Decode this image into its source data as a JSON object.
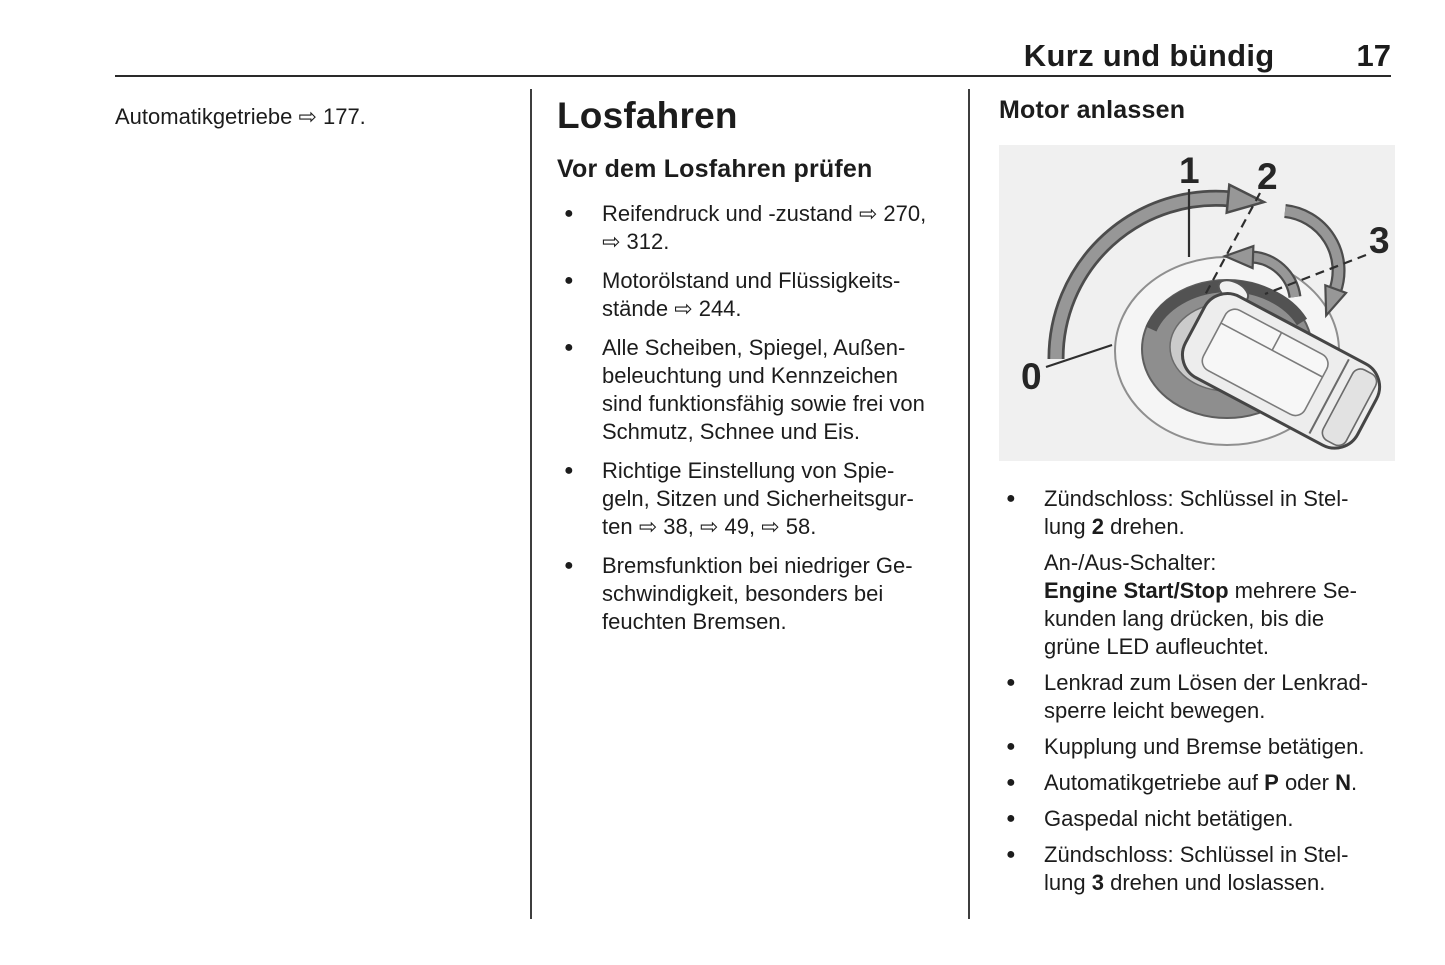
{
  "header": {
    "title": "Kurz und bündig",
    "page_number": "17"
  },
  "list_style": {
    "bullet_char": "●"
  },
  "left_column": {
    "cross_reference": "Automatikgetriebe ⇨ 177."
  },
  "middle_column": {
    "heading": "Losfahren",
    "subheading": "Vor dem Losfahren prüfen",
    "bullets": [
      "Reifendruck und -zustand ⇨ 270,\n⇨ 312.",
      "Motorölstand und Flüssigkeits-\nstände ⇨ 244.",
      "Alle Scheiben, Spiegel, Außen-\nbeleuchtung und Kennzeichen\nsind funktionsfähig sowie frei von\nSchmutz, Schnee und Eis.",
      "Richtige Einstellung von Spie-\ngeln, Sitzen und Sicherheitsgur-\nten ⇨ 38, ⇨ 49, ⇨ 58.",
      "Bremsfunktion bei niedriger Ge-\nschwindigkeit, besonders bei\nfeuchten Bremsen."
    ]
  },
  "right_column": {
    "heading": "Motor anlassen",
    "figure": {
      "description": "ignition-switch-with-key-positions",
      "position_labels": [
        "0",
        "1",
        "2",
        "3"
      ]
    },
    "items": [
      {
        "bullet": true,
        "segments": [
          {
            "t": "Zündschloss: Schlüssel in Stel-\nlung "
          },
          {
            "t": "2",
            "b": true
          },
          {
            "t": " drehen."
          }
        ]
      },
      {
        "bullet": false,
        "segments": [
          {
            "t": "An-/Aus-Schalter:\n"
          },
          {
            "t": "Engine Start/Stop",
            "b": true
          },
          {
            "t": " mehrere Se-\nkunden lang drücken, bis die\ngrüne LED aufleuchtet."
          }
        ]
      },
      {
        "bullet": true,
        "segments": [
          {
            "t": "Lenkrad zum Lösen der Lenkrad-\nsperre leicht bewegen."
          }
        ]
      },
      {
        "bullet": true,
        "segments": [
          {
            "t": "Kupplung und Bremse betätigen."
          }
        ]
      },
      {
        "bullet": true,
        "segments": [
          {
            "t": "Automatikgetriebe auf "
          },
          {
            "t": "P",
            "b": true
          },
          {
            "t": " oder "
          },
          {
            "t": "N",
            "b": true
          },
          {
            "t": "."
          }
        ]
      },
      {
        "bullet": true,
        "segments": [
          {
            "t": "Gaspedal nicht betätigen."
          }
        ]
      },
      {
        "bullet": true,
        "segments": [
          {
            "t": "Zündschloss: Schlüssel in Stel-\nlung "
          },
          {
            "t": "3",
            "b": true
          },
          {
            "t": " drehen und loslassen."
          }
        ]
      }
    ]
  }
}
